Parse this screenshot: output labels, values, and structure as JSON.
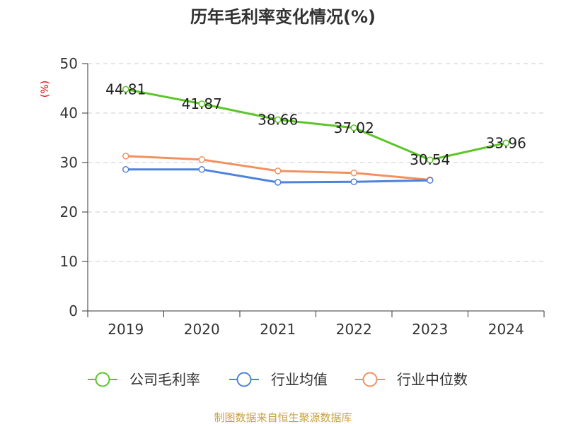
{
  "chart_data": {
    "type": "line",
    "title": "历年毛利率变化情况(%)",
    "ylabel": "(%)",
    "xlabel": "",
    "categories": [
      "2019",
      "2020",
      "2021",
      "2022",
      "2023",
      "2024"
    ],
    "ylim": [
      0,
      50
    ],
    "yticks": [
      0,
      10,
      20,
      30,
      40,
      50
    ],
    "grid": true,
    "legend_position": "bottom",
    "series": [
      {
        "name": "公司毛利率",
        "color": "#5cc626",
        "values": [
          44.81,
          41.87,
          38.66,
          37.02,
          30.54,
          33.96
        ],
        "labels": [
          "44.81",
          "41.87",
          "38.66",
          "37.02",
          "30.54",
          "33.96"
        ]
      },
      {
        "name": "行业均值",
        "color": "#4f82db",
        "values": [
          28.6,
          28.6,
          26.0,
          26.1,
          26.4,
          null
        ]
      },
      {
        "name": "行业中位数",
        "color": "#f29160",
        "values": [
          31.3,
          30.6,
          28.3,
          27.9,
          26.5,
          null
        ]
      }
    ]
  },
  "source_note": "制图数据来自恒生聚源数据库"
}
